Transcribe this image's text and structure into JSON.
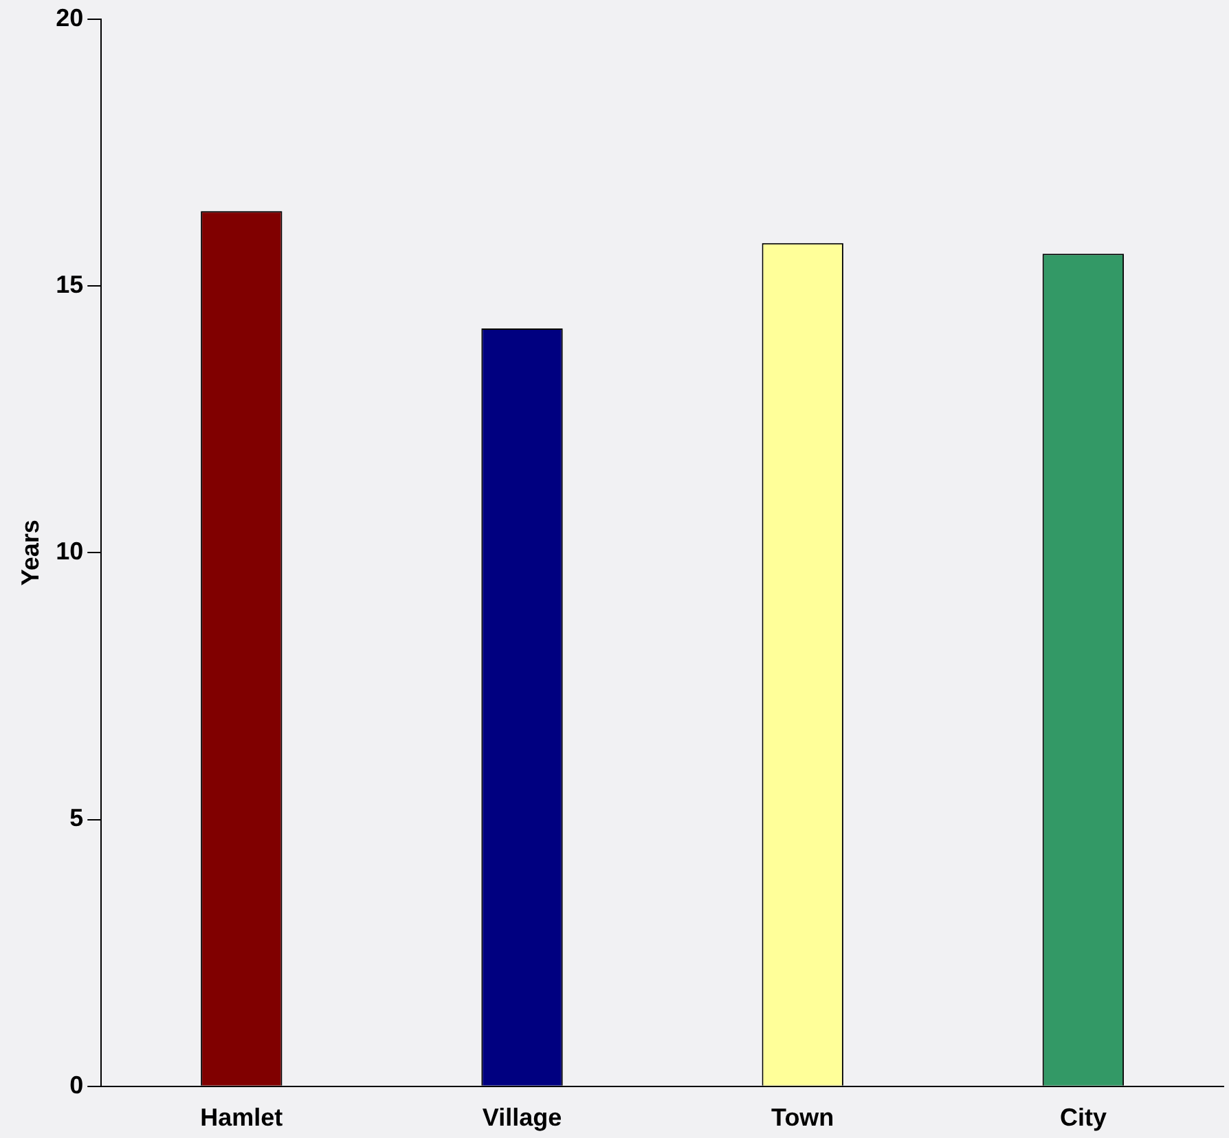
{
  "chart_data": {
    "type": "bar",
    "ylabel": "Years",
    "categories": [
      "Hamlet",
      "Village",
      "Town",
      "City"
    ],
    "values": [
      16.4,
      14.2,
      15.8,
      15.6
    ],
    "colors": [
      "#800000",
      "#000080",
      "#ffff99",
      "#339966"
    ],
    "ylim": [
      0,
      20
    ],
    "yticks": [
      0,
      5,
      10,
      15,
      20
    ],
    "grid": false,
    "legend": false
  }
}
